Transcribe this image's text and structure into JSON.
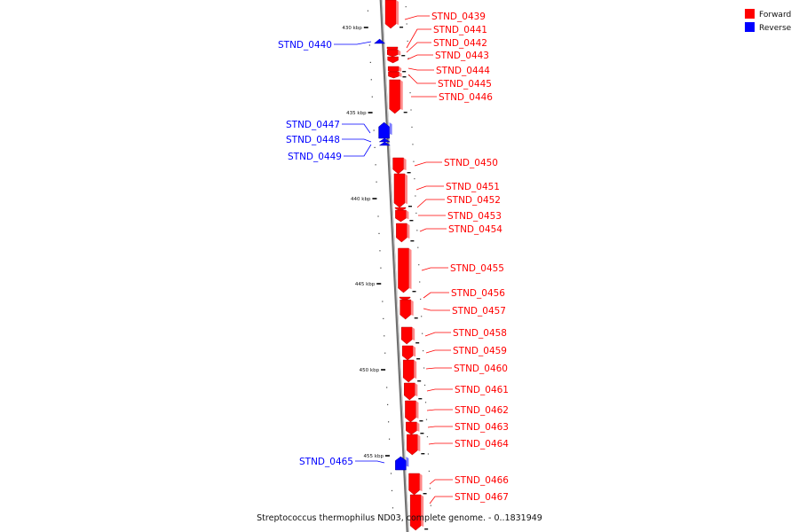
{
  "caption": "Streptococcus thermophilus ND03, complete genome. - 0..1831949",
  "legend": [
    {
      "label": "Forward",
      "color": "#ff0000"
    },
    {
      "label": "Reverse",
      "color": "#0000ff"
    }
  ],
  "colors": {
    "forward": "#ff0000",
    "reverse": "#0000ff",
    "axis": "#9a9a9a"
  },
  "ticks": [
    {
      "label": "430 kbp",
      "kbp": 430
    },
    {
      "label": "435 kbp",
      "kbp": 435
    },
    {
      "label": "440 kbp",
      "kbp": 440
    },
    {
      "label": "445 kbp",
      "kbp": 445
    },
    {
      "label": "450 kbp",
      "kbp": 450
    },
    {
      "label": "455 kbp",
      "kbp": 455
    }
  ],
  "genes": [
    {
      "name": "STND_0439",
      "strand": "forward"
    },
    {
      "name": "STND_0440",
      "strand": "reverse"
    },
    {
      "name": "STND_0441",
      "strand": "forward"
    },
    {
      "name": "STND_0442",
      "strand": "forward"
    },
    {
      "name": "STND_0443",
      "strand": "forward"
    },
    {
      "name": "STND_0444",
      "strand": "forward"
    },
    {
      "name": "STND_0445",
      "strand": "forward"
    },
    {
      "name": "STND_0446",
      "strand": "forward"
    },
    {
      "name": "STND_0447",
      "strand": "reverse"
    },
    {
      "name": "STND_0448",
      "strand": "reverse"
    },
    {
      "name": "STND_0449",
      "strand": "reverse"
    },
    {
      "name": "STND_0450",
      "strand": "forward"
    },
    {
      "name": "STND_0451",
      "strand": "forward"
    },
    {
      "name": "STND_0452",
      "strand": "forward"
    },
    {
      "name": "STND_0453",
      "strand": "forward"
    },
    {
      "name": "STND_0454",
      "strand": "forward"
    },
    {
      "name": "STND_0455",
      "strand": "forward"
    },
    {
      "name": "STND_0456",
      "strand": "forward"
    },
    {
      "name": "STND_0457",
      "strand": "forward"
    },
    {
      "name": "STND_0458",
      "strand": "forward"
    },
    {
      "name": "STND_0459",
      "strand": "forward"
    },
    {
      "name": "STND_0460",
      "strand": "forward"
    },
    {
      "name": "STND_0461",
      "strand": "forward"
    },
    {
      "name": "STND_0462",
      "strand": "forward"
    },
    {
      "name": "STND_0463",
      "strand": "forward"
    },
    {
      "name": "STND_0464",
      "strand": "forward"
    },
    {
      "name": "STND_0465",
      "strand": "reverse"
    },
    {
      "name": "STND_0466",
      "strand": "forward"
    },
    {
      "name": "STND_0467",
      "strand": "forward"
    }
  ]
}
